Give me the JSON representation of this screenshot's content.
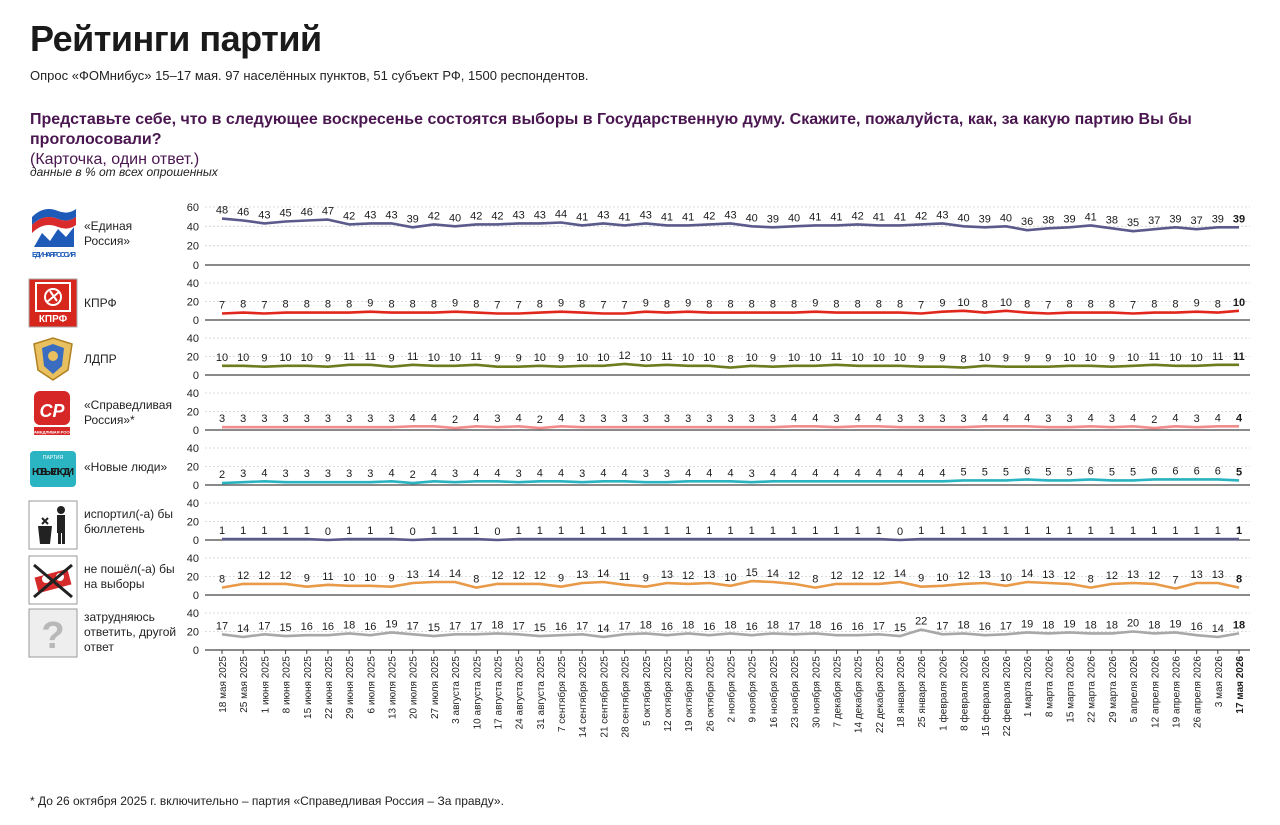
{
  "header": {
    "title": "Рейтинги партий",
    "subtitle": "Опрос «ФОМнибус» 15–17 мая. 97 населённых пунктов, 51 субъект РФ, 1500 респондентов.",
    "question": "Представьте себе, что в следующее воскресенье состоятся выборы в Государственную думу. Скажите, пожалуйста, как, за какую партию Вы бы проголосовали?",
    "question_note": "(Карточка, один ответ.)",
    "units": "данные в % от всех опрошенных"
  },
  "footnote": "* До 26 октября 2025 г. включительно – партия «Справедливая Россия – За правду».",
  "logos": {
    "er_text": "ЕДИНАЯ РОССИЯ",
    "kprf_text": "КПРФ",
    "sr_text": "СР",
    "sr_small": "СПРАВЕДЛИВАЯ РОССИЯ",
    "nl_small": "ПАРТИЯ",
    "nl_text": "НОВЫЕ ЛЮДИ",
    "unsure_glyph": "?"
  },
  "chart_data": {
    "type": "line",
    "x": [
      "18 мая 2025",
      "25 мая 2025",
      "1 июня 2025",
      "8 июня 2025",
      "15 июня 2025",
      "22 июня 2025",
      "29 июня 2025",
      "6 июля 2025",
      "13 июля 2025",
      "20 июля 2025",
      "27 июля 2025",
      "3 августа 2025",
      "10 августа 2025",
      "17 августа 2025",
      "24 августа 2025",
      "31 августа 2025",
      "7 сентября 2025",
      "14 сентября 2025",
      "21 сентября 2025",
      "28 сентября 2025",
      "5 октября 2025",
      "12 октября 2025",
      "19 октября 2025",
      "26 октября 2025",
      "2 ноября 2025",
      "9 ноября 2025",
      "16 ноября 2025",
      "23 ноября 2025",
      "30 ноября 2025",
      "7 декабря 2025",
      "14 декабря 2025",
      "22 декабря 2025",
      "18 января 2026",
      "25 января 2026",
      "1 февраля 2026",
      "8 февраля 2026",
      "15 февраля 2026",
      "22 февраля 2026",
      "1 марта 2026",
      "8 марта 2026",
      "15 марта 2026",
      "22 марта 2026",
      "29 марта 2026",
      "5 апреля 2026",
      "12 апреля 2026",
      "19 апреля 2026",
      "26 апреля 2026",
      "3 мая 2026",
      "17 мая 2026"
    ],
    "series": [
      {
        "name": "«Единая Россия»",
        "color": "#5b5a8c",
        "yticks": [
          0,
          20,
          40,
          60
        ],
        "ylim": [
          0,
          60
        ],
        "values": [
          48,
          46,
          43,
          45,
          46,
          47,
          42,
          43,
          43,
          39,
          42,
          40,
          42,
          42,
          43,
          43,
          44,
          41,
          43,
          41,
          43,
          41,
          41,
          42,
          43,
          40,
          39,
          40,
          41,
          41,
          42,
          41,
          41,
          42,
          43,
          40,
          39,
          40,
          36,
          38,
          39,
          41,
          38,
          35,
          37,
          39,
          37,
          39,
          39
        ]
      },
      {
        "name": "КПРФ",
        "color": "#e1261c",
        "yticks": [
          0,
          20,
          40
        ],
        "ylim": [
          0,
          40
        ],
        "values": [
          7,
          8,
          7,
          8,
          8,
          8,
          8,
          9,
          8,
          8,
          8,
          9,
          8,
          7,
          7,
          8,
          9,
          8,
          7,
          7,
          9,
          8,
          9,
          8,
          8,
          8,
          8,
          8,
          9,
          8,
          8,
          8,
          8,
          7,
          9,
          10,
          8,
          10,
          8,
          7,
          8,
          8,
          8,
          7,
          8,
          8,
          9,
          8,
          10
        ]
      },
      {
        "name": "ЛДПР",
        "color": "#6f7b1f",
        "yticks": [
          0,
          20,
          40
        ],
        "ylim": [
          0,
          40
        ],
        "values": [
          10,
          10,
          9,
          10,
          10,
          9,
          11,
          11,
          9,
          11,
          10,
          10,
          11,
          9,
          9,
          10,
          9,
          10,
          10,
          12,
          10,
          11,
          10,
          10,
          8,
          10,
          9,
          10,
          10,
          11,
          10,
          10,
          10,
          9,
          9,
          8,
          10,
          9,
          9,
          9,
          10,
          10,
          9,
          10,
          11,
          10,
          10,
          11,
          11
        ]
      },
      {
        "name": "«Справедливая Россия»*",
        "color": "#f08c8c",
        "yticks": [
          0,
          20,
          40
        ],
        "ylim": [
          0,
          40
        ],
        "values": [
          3,
          3,
          3,
          3,
          3,
          3,
          3,
          3,
          3,
          4,
          4,
          2,
          4,
          3,
          4,
          2,
          4,
          3,
          3,
          3,
          3,
          3,
          3,
          3,
          3,
          3,
          3,
          4,
          4,
          3,
          4,
          4,
          3,
          3,
          3,
          3,
          4,
          4,
          4,
          3,
          3,
          4,
          3,
          4,
          2,
          4,
          3,
          4,
          4
        ]
      },
      {
        "name": "«Новые люди»",
        "color": "#2ab3c0",
        "yticks": [
          0,
          20,
          40
        ],
        "ylim": [
          0,
          40
        ],
        "values": [
          2,
          3,
          4,
          3,
          3,
          3,
          3,
          3,
          4,
          2,
          4,
          3,
          4,
          4,
          3,
          4,
          4,
          3,
          4,
          4,
          3,
          3,
          4,
          4,
          4,
          3,
          4,
          4,
          4,
          4,
          4,
          4,
          4,
          4,
          4,
          5,
          5,
          5,
          6,
          5,
          5,
          6,
          5,
          5,
          6,
          6,
          6,
          6,
          5
        ]
      },
      {
        "name": "испортил(-а) бы бюллетень",
        "color": "#5b5a8c",
        "yticks": [
          0,
          20,
          40
        ],
        "ylim": [
          0,
          40
        ],
        "values": [
          1,
          1,
          1,
          1,
          1,
          0,
          1,
          1,
          1,
          0,
          1,
          1,
          1,
          0,
          1,
          1,
          1,
          1,
          1,
          1,
          1,
          1,
          1,
          1,
          1,
          1,
          1,
          1,
          1,
          1,
          1,
          1,
          0,
          1,
          1,
          1,
          1,
          1,
          1,
          1,
          1,
          1,
          1,
          1,
          1,
          1,
          1,
          1,
          1
        ]
      },
      {
        "name": "не пошёл(-а) бы на выборы",
        "color": "#e89a48",
        "yticks": [
          0,
          20,
          40
        ],
        "ylim": [
          0,
          40
        ],
        "values": [
          8,
          12,
          12,
          12,
          9,
          11,
          10,
          10,
          9,
          13,
          14,
          14,
          8,
          12,
          12,
          12,
          9,
          13,
          14,
          11,
          9,
          13,
          12,
          13,
          10,
          15,
          14,
          12,
          8,
          12,
          12,
          12,
          14,
          9,
          10,
          12,
          13,
          10,
          14,
          13,
          12,
          8,
          12,
          13,
          12,
          7,
          13,
          13,
          8
        ]
      },
      {
        "name": "затрудняюсь ответить, другой ответ",
        "color": "#a8a8a8",
        "yticks": [
          0,
          20,
          40
        ],
        "ylim": [
          0,
          40
        ],
        "values": [
          17,
          14,
          17,
          15,
          16,
          16,
          18,
          16,
          19,
          17,
          15,
          17,
          17,
          18,
          17,
          15,
          16,
          17,
          14,
          17,
          18,
          16,
          18,
          16,
          18,
          16,
          18,
          17,
          18,
          16,
          16,
          17,
          15,
          22,
          17,
          18,
          16,
          17,
          19,
          18,
          19,
          18,
          18,
          20,
          18,
          19,
          16,
          14,
          18
        ]
      }
    ]
  }
}
